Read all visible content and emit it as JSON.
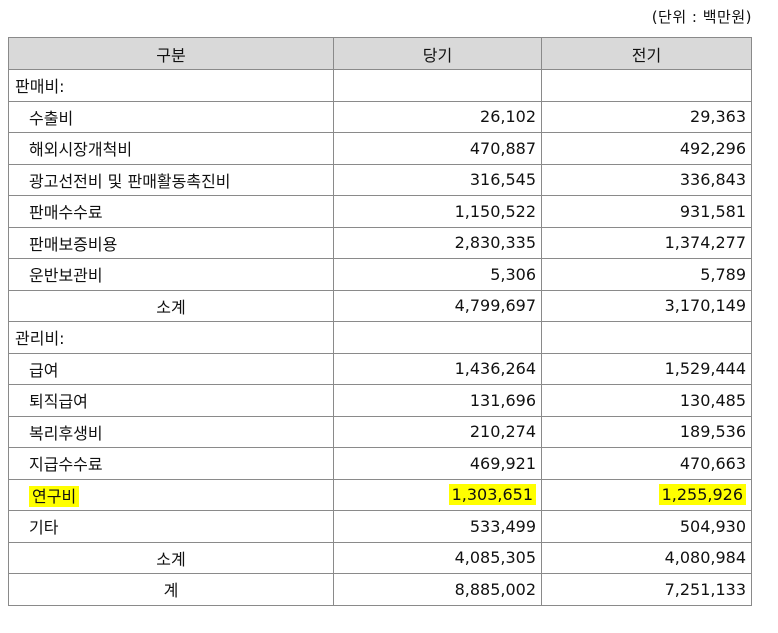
{
  "unit_label": "(단위 : 백만원)",
  "headers": [
    "구분",
    "당기",
    "전기"
  ],
  "rows": [
    {
      "type": "cat",
      "label": "판매비:",
      "cur": "",
      "prev": ""
    },
    {
      "type": "item",
      "label": "수출비",
      "cur": "26,102",
      "prev": "29,363"
    },
    {
      "type": "item",
      "label": "해외시장개척비",
      "cur": "470,887",
      "prev": "492,296"
    },
    {
      "type": "item",
      "label": "광고선전비 및 판매활동촉진비",
      "cur": "316,545",
      "prev": "336,843"
    },
    {
      "type": "item",
      "label": "판매수수료",
      "cur": "1,150,522",
      "prev": "931,581"
    },
    {
      "type": "item",
      "label": "판매보증비용",
      "cur": "2,830,335",
      "prev": "1,374,277"
    },
    {
      "type": "item",
      "label": "운반보관비",
      "cur": "5,306",
      "prev": "5,789"
    },
    {
      "type": "sub",
      "label": "소계",
      "cur": "4,799,697",
      "prev": "3,170,149"
    },
    {
      "type": "cat",
      "label": "관리비:",
      "cur": "",
      "prev": ""
    },
    {
      "type": "item",
      "label": "급여",
      "cur": "1,436,264",
      "prev": "1,529,444"
    },
    {
      "type": "item",
      "label": "퇴직급여",
      "cur": "131,696",
      "prev": "130,485"
    },
    {
      "type": "item",
      "label": "복리후생비",
      "cur": "210,274",
      "prev": "189,536"
    },
    {
      "type": "item",
      "label": "지급수수료",
      "cur": "469,921",
      "prev": "470,663"
    },
    {
      "type": "item",
      "label": "연구비",
      "cur": "1,303,651",
      "prev": "1,255,926",
      "highlight": true
    },
    {
      "type": "item",
      "label": "기타",
      "cur": "533,499",
      "prev": "504,930"
    },
    {
      "type": "sub",
      "label": "소계",
      "cur": "4,085,305",
      "prev": "4,080,984"
    },
    {
      "type": "sub",
      "label": "계",
      "cur": "8,885,002",
      "prev": "7,251,133"
    }
  ],
  "highlight_color": "#ffff00"
}
